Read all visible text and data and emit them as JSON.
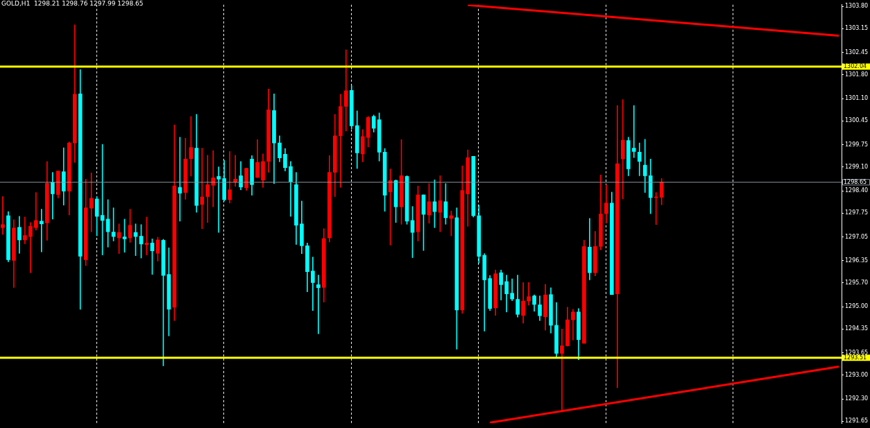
{
  "chart_data": {
    "type": "candlestick",
    "title": "GOLD,H1  1298.21 1298.76 1297.99 1298.65",
    "categories": [
      null,
      null,
      null,
      null,
      null,
      null,
      null,
      null,
      null,
      null,
      null,
      null,
      null,
      null,
      null,
      null,
      null,
      null,
      null,
      null,
      null,
      null,
      null,
      null,
      null,
      null,
      null,
      null,
      null,
      null,
      null,
      null,
      null,
      null,
      null,
      null,
      null,
      null,
      null,
      null,
      null,
      null,
      null,
      null,
      null,
      null,
      null,
      null,
      null,
      null,
      null,
      null,
      null,
      null,
      null,
      null,
      null,
      null,
      null,
      null,
      null,
      null,
      null,
      null,
      null,
      null,
      null,
      null,
      null,
      null,
      null,
      null,
      null,
      null,
      null,
      null,
      null,
      null,
      null,
      null,
      null,
      null,
      null,
      null,
      null,
      null,
      null,
      null,
      null,
      null,
      null,
      null,
      null,
      null,
      null,
      null,
      null,
      null,
      null,
      null,
      null,
      null,
      null,
      null,
      null,
      null,
      null,
      null,
      null,
      null,
      null,
      null,
      null,
      null,
      null,
      null,
      null,
      null,
      null,
      null,
      null,
      null,
      null,
      null,
      null,
      null,
      null,
      null,
      null,
      null,
      null,
      null,
      null,
      null,
      null,
      null,
      null,
      null,
      null,
      null,
      null,
      null,
      null,
      null,
      null,
      null,
      null,
      null,
      null,
      null,
      null,
      null
    ],
    "ohlc": [
      [
        1297.32,
        1298.23,
        1297.12,
        1297.41
      ],
      [
        1297.67,
        1297.79,
        1296.32,
        1296.38
      ],
      [
        1296.36,
        1297.55,
        1295.57,
        1297.31
      ],
      [
        1297.33,
        1297.65,
        1296.57,
        1296.96
      ],
      [
        1296.96,
        1297.63,
        1296.85,
        1297.09
      ],
      [
        1297.06,
        1297.47,
        1296.0,
        1297.36
      ],
      [
        1297.32,
        1298.35,
        1297.25,
        1297.53
      ],
      [
        1297.51,
        1297.86,
        1296.61,
        1297.43
      ],
      [
        1297.46,
        1299.26,
        1296.95,
        1298.62
      ],
      [
        1298.65,
        1298.94,
        1297.57,
        1298.31
      ],
      [
        1298.29,
        1298.98,
        1298.19,
        1298.98
      ],
      [
        1298.96,
        1299.66,
        1297.98,
        1298.39
      ],
      [
        1298.39,
        1299.83,
        1297.69,
        1299.8
      ],
      [
        1299.8,
        1303.26,
        1299.23,
        1301.23
      ],
      [
        1301.24,
        1301.95,
        1294.93,
        1296.48
      ],
      [
        1296.38,
        1298.74,
        1296.21,
        1297.9
      ],
      [
        1297.89,
        1298.92,
        1297.2,
        1298.18
      ],
      [
        1298.16,
        1298.23,
        1297.08,
        1297.65
      ],
      [
        1297.68,
        1299.76,
        1296.52,
        1297.53
      ],
      [
        1297.57,
        1298.14,
        1296.75,
        1297.2
      ],
      [
        1297.19,
        1297.9,
        1296.93,
        1297.06
      ],
      [
        1297.02,
        1297.43,
        1296.56,
        1297.18
      ],
      [
        1297.05,
        1297.57,
        1296.6,
        1296.99
      ],
      [
        1297.02,
        1297.86,
        1296.89,
        1297.39
      ],
      [
        1297.18,
        1297.43,
        1296.5,
        1297.06
      ],
      [
        1297.07,
        1297.41,
        1296.43,
        1296.84
      ],
      [
        1296.82,
        1297.63,
        1296.52,
        1296.87
      ],
      [
        1296.87,
        1296.99,
        1295.95,
        1296.64
      ],
      [
        1296.57,
        1297.04,
        1296.34,
        1296.96
      ],
      [
        1296.95,
        1296.98,
        1293.27,
        1295.92
      ],
      [
        1295.95,
        1296.73,
        1294.15,
        1294.93
      ],
      [
        1294.99,
        1300.33,
        1294.6,
        1298.54
      ],
      [
        1298.5,
        1299.97,
        1297.51,
        1298.33
      ],
      [
        1298.35,
        1299.94,
        1298.15,
        1299.33
      ],
      [
        1299.34,
        1300.58,
        1298.83,
        1299.67
      ],
      [
        1299.65,
        1300.64,
        1297.77,
        1297.97
      ],
      [
        1298.0,
        1299.65,
        1297.29,
        1298.22
      ],
      [
        1298.23,
        1299.44,
        1297.47,
        1298.58
      ],
      [
        1298.56,
        1299.58,
        1297.93,
        1298.78
      ],
      [
        1298.82,
        1299.1,
        1297.18,
        1298.74
      ],
      [
        1298.76,
        1299.29,
        1298.1,
        1298.14
      ],
      [
        1298.14,
        1299.55,
        1298.04,
        1298.43
      ],
      [
        1298.65,
        1299.44,
        1298.53,
        1298.74
      ],
      [
        1298.84,
        1299.26,
        1298.43,
        1298.51
      ],
      [
        1298.49,
        1299.06,
        1298.41,
        1299.06
      ],
      [
        1299.33,
        1299.43,
        1298.27,
        1298.58
      ],
      [
        1298.79,
        1299.9,
        1298.79,
        1299.23
      ],
      [
        1298.71,
        1299.48,
        1298.5,
        1299.26
      ],
      [
        1299.26,
        1301.38,
        1298.94,
        1300.77
      ],
      [
        1300.75,
        1301.24,
        1298.61,
        1299.8
      ],
      [
        1299.8,
        1300.01,
        1299.25,
        1299.36
      ],
      [
        1299.47,
        1299.64,
        1298.98,
        1299.08
      ],
      [
        1299.11,
        1299.26,
        1297.65,
        1298.67
      ],
      [
        1298.58,
        1298.94,
        1296.83,
        1297.39
      ],
      [
        1297.43,
        1298.1,
        1296.56,
        1296.79
      ],
      [
        1296.79,
        1296.87,
        1295.44,
        1296.03
      ],
      [
        1296.05,
        1296.46,
        1294.89,
        1295.71
      ],
      [
        1295.65,
        1295.93,
        1294.21,
        1295.56
      ],
      [
        1295.57,
        1297.29,
        1295.14,
        1297.0
      ],
      [
        1297.02,
        1299.43,
        1296.9,
        1298.94
      ],
      [
        1298.94,
        1300.64,
        1298.23,
        1300.01
      ],
      [
        1300.01,
        1301.23,
        1298.5,
        1300.87
      ],
      [
        1300.87,
        1302.53,
        1300.15,
        1301.33
      ],
      [
        1301.34,
        1301.48,
        1300.21,
        1300.3
      ],
      [
        1300.31,
        1300.74,
        1299.05,
        1299.51
      ],
      [
        1299.48,
        1300.19,
        1299.25,
        1299.99
      ],
      [
        1299.96,
        1300.58,
        1299.68,
        1300.55
      ],
      [
        1300.58,
        1300.62,
        1300.12,
        1300.23
      ],
      [
        1300.48,
        1300.68,
        1299.27,
        1299.53
      ],
      [
        1299.53,
        1299.64,
        1297.8,
        1298.27
      ],
      [
        1298.37,
        1299.04,
        1296.81,
        1298.7
      ],
      [
        1298.7,
        1298.72,
        1297.47,
        1297.93
      ],
      [
        1297.93,
        1299.9,
        1297.42,
        1298.84
      ],
      [
        1298.82,
        1298.84,
        1297.42,
        1297.51
      ],
      [
        1297.53,
        1297.94,
        1296.44,
        1297.18
      ],
      [
        1297.2,
        1298.54,
        1296.93,
        1298.28
      ],
      [
        1298.28,
        1298.28,
        1296.65,
        1297.71
      ],
      [
        1297.69,
        1298.61,
        1297.45,
        1298.08
      ],
      [
        1298.08,
        1298.72,
        1297.32,
        1297.79
      ],
      [
        1297.77,
        1298.84,
        1297.2,
        1298.11
      ],
      [
        1298.08,
        1298.61,
        1297.42,
        1297.61
      ],
      [
        1297.59,
        1297.81,
        1297.08,
        1297.67
      ],
      [
        1297.61,
        1297.9,
        1293.76,
        1294.91
      ],
      [
        1294.91,
        1299.13,
        1294.81,
        1298.41
      ],
      [
        1298.31,
        1299.6,
        1297.36,
        1299.37
      ],
      [
        1299.41,
        1299.41,
        1297.63,
        1297.67
      ],
      [
        1297.67,
        1297.98,
        1296.28,
        1296.48
      ],
      [
        1296.51,
        1296.56,
        1294.29,
        1295.79
      ],
      [
        1295.83,
        1295.92,
        1294.89,
        1294.95
      ],
      [
        1294.97,
        1296.08,
        1294.75,
        1295.97
      ],
      [
        1296.0,
        1296.08,
        1295.2,
        1295.65
      ],
      [
        1295.74,
        1295.93,
        1294.85,
        1295.38
      ],
      [
        1295.4,
        1295.82,
        1295.18,
        1295.23
      ],
      [
        1295.22,
        1295.93,
        1294.7,
        1294.78
      ],
      [
        1294.75,
        1295.71,
        1294.52,
        1295.17
      ],
      [
        1295.17,
        1295.71,
        1295.05,
        1295.3
      ],
      [
        1295.32,
        1295.35,
        1294.87,
        1295.07
      ],
      [
        1295.06,
        1295.32,
        1294.6,
        1294.74
      ],
      [
        1294.71,
        1295.66,
        1294.32,
        1295.35
      ],
      [
        1295.36,
        1295.56,
        1294.23,
        1294.46
      ],
      [
        1294.46,
        1295.13,
        1293.52,
        1293.64
      ],
      [
        1293.64,
        1294.35,
        1291.96,
        1293.86
      ],
      [
        1293.86,
        1294.99,
        1293.85,
        1294.62
      ],
      [
        1294.62,
        1294.93,
        1294.03,
        1294.85
      ],
      [
        1294.85,
        1294.95,
        1293.45,
        1294.04
      ],
      [
        1293.93,
        1296.95,
        1293.93,
        1296.77
      ],
      [
        1296.75,
        1297.59,
        1295.79,
        1296.0
      ],
      [
        1296.0,
        1297.21,
        1295.91,
        1296.77
      ],
      [
        1296.77,
        1298.86,
        1296.67,
        1297.72
      ],
      [
        1297.73,
        1298.57,
        1297.46,
        1298.04
      ],
      [
        1298.04,
        1298.36,
        1295.36,
        1295.36
      ],
      [
        1295.38,
        1300.9,
        1292.63,
        1299.19
      ],
      [
        1299.33,
        1301.07,
        1298.16,
        1299.88
      ],
      [
        1299.87,
        1299.97,
        1298.84,
        1299.04
      ],
      [
        1299.65,
        1300.9,
        1299.37,
        1299.55
      ],
      [
        1299.53,
        1299.8,
        1298.84,
        1299.26
      ],
      [
        1299.15,
        1299.91,
        1298.35,
        1298.84
      ],
      [
        1298.84,
        1299.33,
        1297.73,
        1298.2
      ],
      [
        1298.2,
        1298.35,
        1297.41,
        1298.22
      ],
      [
        1298.21,
        1298.76,
        1297.99,
        1298.65
      ],
      null,
      null,
      null,
      null,
      null,
      null,
      null,
      null,
      null,
      null,
      null,
      null,
      null,
      null,
      null,
      null,
      null,
      null,
      null,
      null,
      null,
      null,
      null,
      null,
      null,
      null,
      null,
      null,
      null,
      null,
      null,
      null
    ],
    "colors": [
      "#ff0000",
      "#00ffff",
      "#ff0000",
      "#00ffff",
      "#ff0000",
      "#ff0000",
      "#ff0000",
      "#00ffff",
      "#ff0000",
      "#00ffff",
      "#ff0000",
      "#00ffff",
      "#ff0000",
      "#ff0000",
      "#00ffff",
      "#ff0000",
      "#ff0000",
      "#00ffff",
      "#00ffff",
      "#00ffff",
      "#00ffff",
      "#ff0000",
      "#00ffff",
      "#ff0000",
      "#00ffff",
      "#00ffff",
      "#ff0000",
      "#00ffff",
      "#ff0000",
      "#00ffff",
      "#00ffff",
      "#ff0000",
      "#00ffff",
      "#ff0000",
      "#ff0000",
      "#00ffff",
      "#ff0000",
      "#ff0000",
      "#ff0000",
      "#00ffff",
      "#00ffff",
      "#ff0000",
      "#ff0000",
      "#00ffff",
      "#ff0000",
      "#00ffff",
      "#ff0000",
      "#ff0000",
      "#ff0000",
      "#00ffff",
      "#00ffff",
      "#00ffff",
      "#00ffff",
      "#00ffff",
      "#00ffff",
      "#00ffff",
      "#00ffff",
      "#00ffff",
      "#ff0000",
      "#ff0000",
      "#ff0000",
      "#ff0000",
      "#ff0000",
      "#00ffff",
      "#00ffff",
      "#ff0000",
      "#ff0000",
      "#00ffff",
      "#00ffff",
      "#00ffff",
      "#ff0000",
      "#00ffff",
      "#ff0000",
      "#00ffff",
      "#00ffff",
      "#ff0000",
      "#00ffff",
      "#ff0000",
      "#00ffff",
      "#ff0000",
      "#00ffff",
      "#ff0000",
      "#00ffff",
      "#ff0000",
      "#ff0000",
      "#00ffff",
      "#00ffff",
      "#00ffff",
      "#00ffff",
      "#ff0000",
      "#00ffff",
      "#00ffff",
      "#00ffff",
      "#00ffff",
      "#ff0000",
      "#ff0000",
      "#00ffff",
      "#00ffff",
      "#ff0000",
      "#00ffff",
      "#00ffff",
      "#ff0000",
      "#ff0000",
      "#ff0000",
      "#00ffff",
      "#ff0000",
      "#00ffff",
      "#ff0000",
      "#ff0000",
      "#ff0000",
      "#00ffff",
      "#ff0000",
      "#ff0000",
      "#00ffff",
      "#00ffff",
      "#00ffff",
      "#00ffff",
      "#00ffff",
      "#ff0000",
      "#ff0000",
      null,
      null,
      null,
      null,
      null,
      null,
      null,
      null,
      null,
      null,
      null,
      null,
      null,
      null,
      null,
      null,
      null,
      null,
      null,
      null,
      null,
      null,
      null,
      null,
      null,
      null,
      null,
      null,
      null,
      null,
      null,
      null
    ],
    "series": [
      {
        "type": "line",
        "color": "#ff0000",
        "values": [
          null,
          null,
          null,
          null,
          null,
          null,
          null,
          null,
          null,
          null,
          null,
          null,
          null,
          null,
          null,
          null,
          null,
          null,
          null,
          null,
          null,
          null,
          null,
          null,
          null,
          null,
          null,
          null,
          null,
          null,
          null,
          null,
          null,
          null,
          null,
          null,
          null,
          null,
          null,
          null,
          null,
          null,
          null,
          null,
          null,
          null,
          null,
          null,
          null,
          null,
          null,
          null,
          null,
          null,
          null,
          null,
          null,
          null,
          null,
          null,
          null,
          null,
          null,
          null,
          null,
          null,
          null,
          null,
          null,
          null,
          null,
          null,
          null,
          null,
          null,
          null,
          null,
          null,
          null,
          null,
          null,
          null,
          null,
          null,
          1303.84,
          null,
          null,
          null,
          null,
          null,
          null,
          null,
          null,
          null,
          null,
          null,
          null,
          null,
          null,
          null,
          null,
          null,
          null,
          null,
          null,
          null,
          null,
          null,
          null,
          null,
          null,
          null,
          null,
          null,
          null,
          null,
          null,
          null,
          null,
          null,
          null,
          null,
          null,
          null,
          null,
          null,
          null,
          null,
          null,
          null,
          null,
          null,
          null,
          null,
          null,
          null,
          null,
          null,
          null,
          null,
          null,
          null,
          null,
          null,
          null,
          null,
          null,
          null,
          null,
          null,
          null,
          1302.94
        ]
      },
      {
        "type": "line",
        "color": "#ff0000",
        "values": [
          null,
          null,
          null,
          null,
          null,
          null,
          null,
          null,
          null,
          null,
          null,
          null,
          null,
          null,
          null,
          null,
          null,
          null,
          null,
          null,
          null,
          null,
          null,
          null,
          null,
          null,
          null,
          null,
          null,
          null,
          null,
          null,
          null,
          null,
          null,
          null,
          null,
          null,
          null,
          null,
          null,
          null,
          null,
          null,
          null,
          null,
          null,
          null,
          null,
          null,
          null,
          null,
          null,
          null,
          null,
          null,
          null,
          null,
          null,
          null,
          null,
          null,
          null,
          null,
          null,
          null,
          null,
          null,
          null,
          null,
          null,
          null,
          null,
          null,
          null,
          null,
          null,
          null,
          null,
          null,
          null,
          null,
          null,
          null,
          null,
          null,
          null,
          null,
          1291.61,
          null,
          null,
          null,
          null,
          null,
          null,
          null,
          null,
          null,
          null,
          null,
          null,
          null,
          null,
          null,
          null,
          null,
          null,
          null,
          null,
          null,
          null,
          null,
          null,
          null,
          null,
          null,
          null,
          null,
          null,
          null,
          null,
          null,
          null,
          null,
          null,
          null,
          null,
          null,
          null,
          null,
          null,
          null,
          null,
          null,
          null,
          null,
          null,
          null,
          null,
          null,
          null,
          null,
          null,
          null,
          null,
          null,
          null,
          null,
          null,
          null,
          null,
          1293.25
        ]
      }
    ],
    "ylim": [
      1291.59,
      1303.85
    ],
    "yticks": [
      {
        "value": 1291.65,
        "label": "1291.65"
      },
      {
        "value": 1292.3,
        "label": "1292.30"
      },
      {
        "value": 1293.0,
        "label": "1293.00"
      },
      {
        "value": 1293.65,
        "label": "1293.65"
      },
      {
        "value": 1294.35,
        "label": "1294.35"
      },
      {
        "value": 1295.0,
        "label": "1295.00"
      },
      {
        "value": 1295.7,
        "label": "1295.70"
      },
      {
        "value": 1296.35,
        "label": "1296.35"
      },
      {
        "value": 1297.05,
        "label": "1297.05"
      },
      {
        "value": 1297.75,
        "label": "1297.75"
      },
      {
        "value": 1298.4,
        "label": "1298.40"
      },
      {
        "value": 1299.1,
        "label": "1299.10"
      },
      {
        "value": 1299.75,
        "label": "1299.75"
      },
      {
        "value": 1300.45,
        "label": "1300.45"
      },
      {
        "value": 1301.1,
        "label": "1301.10"
      },
      {
        "value": 1301.8,
        "label": "1301.80"
      },
      {
        "value": 1302.45,
        "label": "1302.45"
      },
      {
        "value": 1303.15,
        "label": "1303.15"
      },
      {
        "value": 1303.8,
        "label": "1303.80"
      }
    ],
    "ref_lines": [
      {
        "axis": "y",
        "value": 1302.04,
        "label": "1302.04",
        "color": "#ffff00"
      },
      {
        "axis": "y",
        "value": 1293.51,
        "label": "1293.51",
        "color": "#ffff00"
      },
      {
        "axis": "y",
        "value": 1298.65,
        "label": "1298.65",
        "color": "#8c96a0"
      }
    ]
  }
}
